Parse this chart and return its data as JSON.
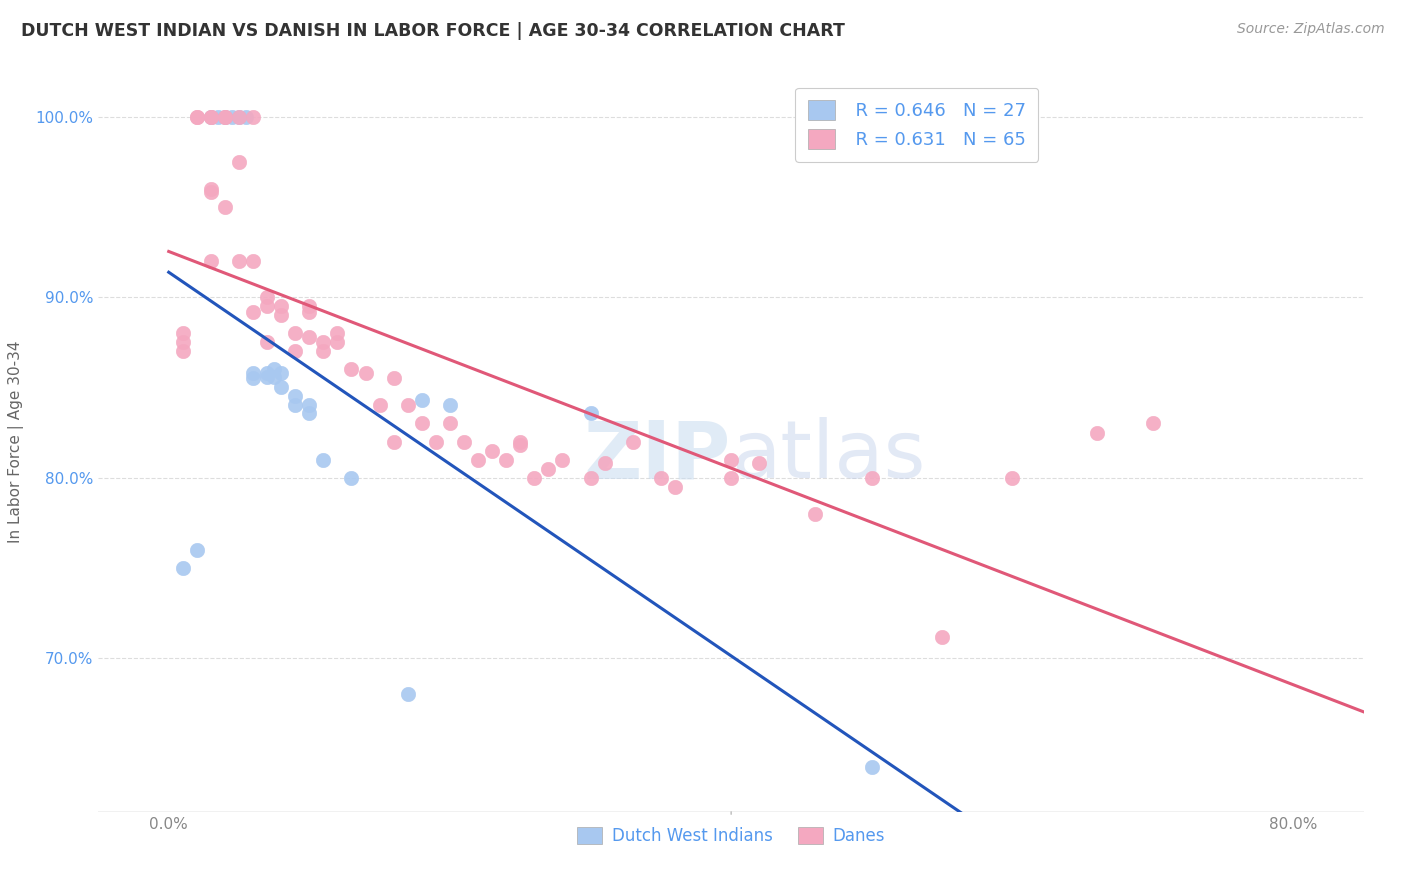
{
  "title": "DUTCH WEST INDIAN VS DANISH IN LABOR FORCE | AGE 30-34 CORRELATION CHART",
  "source": "Source: ZipAtlas.com",
  "ylabel": "In Labor Force | Age 30-34",
  "xlim": [
    -0.005,
    0.085
  ],
  "ylim": [
    0.615,
    1.025
  ],
  "ytick_positions": [
    0.7,
    0.8,
    0.9,
    1.0
  ],
  "yticklabels": [
    "70.0%",
    "80.0%",
    "90.0%",
    "100.0%"
  ],
  "xtick_left": 0.0,
  "xtick_right": 0.08,
  "xtick_left_label": "0.0%",
  "xtick_right_label": "80.0%",
  "legend_r1": "R = 0.646",
  "legend_n1": "N = 27",
  "legend_r2": "R = 0.631",
  "legend_n2": "N = 65",
  "color_blue": "#A8C8F0",
  "color_pink": "#F4A8C0",
  "color_blue_line": "#2255BB",
  "color_pink_line": "#E05878",
  "color_title": "#333333",
  "color_source": "#999999",
  "color_ytick": "#5599EE",
  "color_xtick": "#888888",
  "watermark_zip": "ZIP",
  "watermark_atlas": "atlas",
  "grid_color": "#DDDDDD",
  "background_color": "#FFFFFF",
  "dutch_x": [
    0.001,
    0.002,
    0.003,
    0.0035,
    0.004,
    0.0045,
    0.005,
    0.0055,
    0.006,
    0.006,
    0.007,
    0.007,
    0.0075,
    0.0075,
    0.008,
    0.008,
    0.009,
    0.009,
    0.01,
    0.01,
    0.011,
    0.013,
    0.017,
    0.018,
    0.02,
    0.03,
    0.05
  ],
  "dutch_y": [
    0.75,
    0.76,
    1.0,
    1.0,
    1.0,
    1.0,
    1.0,
    1.0,
    0.855,
    0.858,
    0.856,
    0.858,
    0.856,
    0.86,
    0.85,
    0.858,
    0.84,
    0.845,
    0.836,
    0.84,
    0.81,
    0.8,
    0.68,
    0.843,
    0.84,
    0.836,
    0.64
  ],
  "danes_x": [
    0.001,
    0.001,
    0.001,
    0.002,
    0.002,
    0.003,
    0.003,
    0.003,
    0.003,
    0.003,
    0.004,
    0.004,
    0.004,
    0.005,
    0.005,
    0.005,
    0.006,
    0.006,
    0.006,
    0.007,
    0.007,
    0.007,
    0.008,
    0.008,
    0.009,
    0.009,
    0.01,
    0.01,
    0.01,
    0.011,
    0.011,
    0.012,
    0.012,
    0.013,
    0.014,
    0.015,
    0.016,
    0.016,
    0.017,
    0.018,
    0.019,
    0.02,
    0.021,
    0.022,
    0.023,
    0.024,
    0.025,
    0.025,
    0.026,
    0.027,
    0.028,
    0.03,
    0.031,
    0.033,
    0.035,
    0.036,
    0.04,
    0.04,
    0.042,
    0.046,
    0.05,
    0.055,
    0.06,
    0.066,
    0.07
  ],
  "danes_y": [
    0.87,
    0.875,
    0.88,
    1.0,
    1.0,
    1.0,
    1.0,
    0.96,
    0.958,
    0.92,
    1.0,
    1.0,
    0.95,
    1.0,
    0.975,
    0.92,
    1.0,
    0.92,
    0.892,
    0.9,
    0.895,
    0.875,
    0.89,
    0.895,
    0.87,
    0.88,
    0.892,
    0.895,
    0.878,
    0.875,
    0.87,
    0.875,
    0.88,
    0.86,
    0.858,
    0.84,
    0.855,
    0.82,
    0.84,
    0.83,
    0.82,
    0.83,
    0.82,
    0.81,
    0.815,
    0.81,
    0.82,
    0.818,
    0.8,
    0.805,
    0.81,
    0.8,
    0.808,
    0.82,
    0.8,
    0.795,
    0.81,
    0.8,
    0.808,
    0.78,
    0.8,
    0.712,
    0.8,
    0.825,
    0.83
  ],
  "blue_line_x0": 0.0,
  "blue_line_x1": 0.075,
  "pink_line_x0": 0.0,
  "pink_line_x1": 0.085,
  "scatter_size": 110
}
